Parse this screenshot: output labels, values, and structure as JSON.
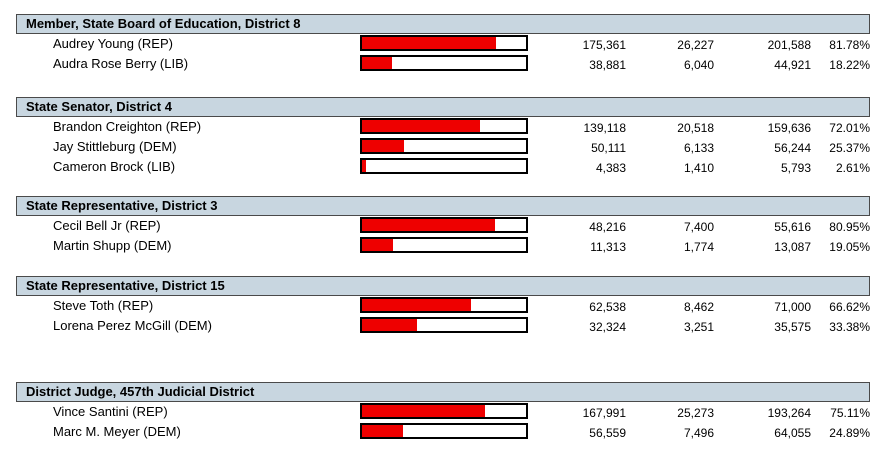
{
  "races": [
    {
      "title": "Member, State Board of Education, District 8",
      "candidates": [
        {
          "name": "Audrey Young (REP)",
          "early": "175,361",
          "election_day": "26,227",
          "total": "201,588",
          "percent": "81.78%",
          "share": 0.8178
        },
        {
          "name": "Audra Rose Berry (LIB)",
          "early": "38,881",
          "election_day": "6,040",
          "total": "44,921",
          "percent": "18.22%",
          "share": 0.1822
        }
      ]
    },
    {
      "title": "State Senator, District 4",
      "candidates": [
        {
          "name": "Brandon Creighton (REP)",
          "early": "139,118",
          "election_day": "20,518",
          "total": "159,636",
          "percent": "72.01%",
          "share": 0.7201
        },
        {
          "name": "Jay Stittleburg (DEM)",
          "early": "50,111",
          "election_day": "6,133",
          "total": "56,244",
          "percent": "25.37%",
          "share": 0.2537
        },
        {
          "name": "Cameron Brock (LIB)",
          "early": "4,383",
          "election_day": "1,410",
          "total": "5,793",
          "percent": "2.61%",
          "share": 0.0261
        }
      ]
    },
    {
      "title": "State Representative, District 3",
      "candidates": [
        {
          "name": "Cecil Bell Jr (REP)",
          "early": "48,216",
          "election_day": "7,400",
          "total": "55,616",
          "percent": "80.95%",
          "share": 0.8095
        },
        {
          "name": "Martin Shupp (DEM)",
          "early": "11,313",
          "election_day": "1,774",
          "total": "13,087",
          "percent": "19.05%",
          "share": 0.1905
        }
      ]
    },
    {
      "title": "State Representative, District 15",
      "candidates": [
        {
          "name": "Steve Toth (REP)",
          "early": "62,538",
          "election_day": "8,462",
          "total": "71,000",
          "percent": "66.62%",
          "share": 0.6662
        },
        {
          "name": "Lorena Perez McGill (DEM)",
          "early": "32,324",
          "election_day": "3,251",
          "total": "35,575",
          "percent": "33.38%",
          "share": 0.3338
        }
      ]
    },
    {
      "title": "District Judge, 457th Judicial District",
      "candidates": [
        {
          "name": "Vince Santini (REP)",
          "early": "167,991",
          "election_day": "25,273",
          "total": "193,264",
          "percent": "75.11%",
          "share": 0.7511
        },
        {
          "name": "Marc M. Meyer (DEM)",
          "early": "56,559",
          "election_day": "7,496",
          "total": "64,055",
          "percent": "24.89%",
          "share": 0.2489
        }
      ]
    }
  ],
  "colors": {
    "header_bg": "#c8d6e0",
    "bar_fill": "#ee0000",
    "bar_border": "#000000"
  }
}
